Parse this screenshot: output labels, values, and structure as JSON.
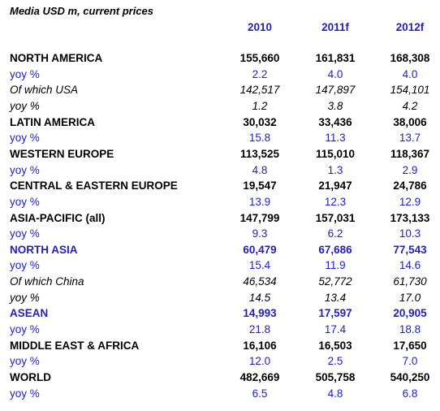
{
  "header": {
    "title": "Media USD m, current prices",
    "columns": [
      "2010",
      "2011f",
      "2012f"
    ]
  },
  "table": {
    "rows": [
      {
        "label": "NORTH AMERICA",
        "style": "bold",
        "values": [
          "155,660",
          "161,831",
          "168,308"
        ]
      },
      {
        "label": "yoy %",
        "style": "blue",
        "values": [
          "2.2",
          "4.0",
          "4.0"
        ]
      },
      {
        "label": "Of which USA",
        "style": "italic",
        "values": [
          "142,517",
          "147,897",
          "154,101"
        ]
      },
      {
        "label": "yoy %",
        "style": "italic",
        "values": [
          "1.2",
          "3.8",
          "4.2"
        ]
      },
      {
        "label": "LATIN AMERICA",
        "style": "bold",
        "values": [
          "30,032",
          "33,436",
          "38,006"
        ]
      },
      {
        "label": "yoy %",
        "style": "blue",
        "values": [
          "15.8",
          "11.3",
          "13.7"
        ]
      },
      {
        "label": "WESTERN EUROPE",
        "style": "bold",
        "values": [
          "113,525",
          "115,010",
          "118,367"
        ]
      },
      {
        "label": "yoy %",
        "style": "blue",
        "values": [
          "4.8",
          "1.3",
          "2.9"
        ]
      },
      {
        "label": "CENTRAL & EASTERN EUROPE",
        "style": "bold",
        "values": [
          "19,547",
          "21,947",
          "24,786"
        ]
      },
      {
        "label": "yoy %",
        "style": "blue",
        "values": [
          "13.9",
          "12.3",
          "12.9"
        ]
      },
      {
        "label": "ASIA-PACIFIC (all)",
        "style": "bold",
        "values": [
          "147,799",
          "157,031",
          "173,133"
        ]
      },
      {
        "label": "yoy %",
        "style": "blue",
        "values": [
          "9.3",
          "6.2",
          "10.3"
        ]
      },
      {
        "label": "NORTH ASIA",
        "style": "bold-blue",
        "values": [
          "60,479",
          "67,686",
          "77,543"
        ]
      },
      {
        "label": "yoy %",
        "style": "blue",
        "values": [
          "15.4",
          "11.9",
          "14.6"
        ]
      },
      {
        "label": "Of which China",
        "style": "italic",
        "values": [
          "46,534",
          "52,772",
          "61,730"
        ]
      },
      {
        "label": "yoy %",
        "style": "italic",
        "values": [
          "14.5",
          "13.4",
          "17.0"
        ]
      },
      {
        "label": "ASEAN",
        "style": "bold-blue",
        "values": [
          "14,993",
          "17,597",
          "20,905"
        ]
      },
      {
        "label": "yoy %",
        "style": "blue",
        "values": [
          "21.8",
          "17.4",
          "18.8"
        ]
      },
      {
        "label": "MIDDLE EAST & AFRICA",
        "style": "bold",
        "values": [
          "16,106",
          "16,503",
          "17,650"
        ]
      },
      {
        "label": "yoy %",
        "style": "blue",
        "values": [
          "12.0",
          "2.5",
          "7.0"
        ]
      },
      {
        "label": "WORLD",
        "style": "bold",
        "values": [
          "482,669",
          "505,758",
          "540,250"
        ]
      },
      {
        "label": "yoy %",
        "style": "blue",
        "values": [
          "6.5",
          "4.8",
          "6.8"
        ]
      }
    ]
  }
}
